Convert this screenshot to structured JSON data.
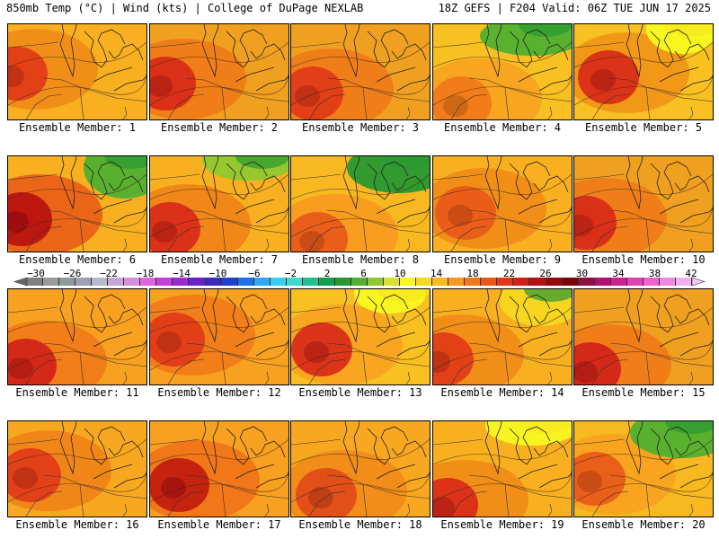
{
  "header": {
    "left": "850mb Temp (°C) | Wind (kts) | College of DuPage NEXLAB",
    "right": "18Z GEFS | F204 Valid: 06Z TUE JUN 17 2025"
  },
  "members": [
    {
      "label": "Ensemble Member: 1"
    },
    {
      "label": "Ensemble Member: 2"
    },
    {
      "label": "Ensemble Member: 3"
    },
    {
      "label": "Ensemble Member: 4"
    },
    {
      "label": "Ensemble Member: 5"
    },
    {
      "label": "Ensemble Member: 6"
    },
    {
      "label": "Ensemble Member: 7"
    },
    {
      "label": "Ensemble Member: 8"
    },
    {
      "label": "Ensemble Member: 9"
    },
    {
      "label": "Ensemble Member: 10"
    },
    {
      "label": "Ensemble Member: 11"
    },
    {
      "label": "Ensemble Member: 12"
    },
    {
      "label": "Ensemble Member: 13"
    },
    {
      "label": "Ensemble Member: 14"
    },
    {
      "label": "Ensemble Member: 15"
    },
    {
      "label": "Ensemble Member: 16"
    },
    {
      "label": "Ensemble Member: 17"
    },
    {
      "label": "Ensemble Member: 18"
    },
    {
      "label": "Ensemble Member: 19"
    },
    {
      "label": "Ensemble Member: 20"
    }
  ],
  "colorbar": {
    "labels": [
      "−30",
      "−26",
      "−22",
      "−18",
      "−14",
      "−10",
      "−6",
      "−2",
      "2",
      "6",
      "10",
      "14",
      "18",
      "22",
      "26",
      "30",
      "34",
      "38",
      "42"
    ],
    "colors": [
      "#7f7f7f",
      "#9a9a9a",
      "#8c9c9c",
      "#a0a0b4",
      "#b8b8cc",
      "#c7a6d8",
      "#d58ee0",
      "#dd66e0",
      "#c040d8",
      "#9a2ad0",
      "#6a20c8",
      "#3a28c0",
      "#2040d0",
      "#2070e8",
      "#30a8f0",
      "#38d0f0",
      "#40d8c8",
      "#20c090",
      "#10a050",
      "#289830",
      "#50b030",
      "#90c830",
      "#d8e030",
      "#f8f820",
      "#f8d820",
      "#f8b820",
      "#f89820",
      "#f07818",
      "#e85818",
      "#e03818",
      "#d02018",
      "#b81010",
      "#980808",
      "#780808",
      "#901040",
      "#b01070",
      "#d02090",
      "#e040b0",
      "#f060d0",
      "#f088e0",
      "#f0b0f0"
    ],
    "colors_meaning": "850mb temperature shading scale (°C)"
  }
}
